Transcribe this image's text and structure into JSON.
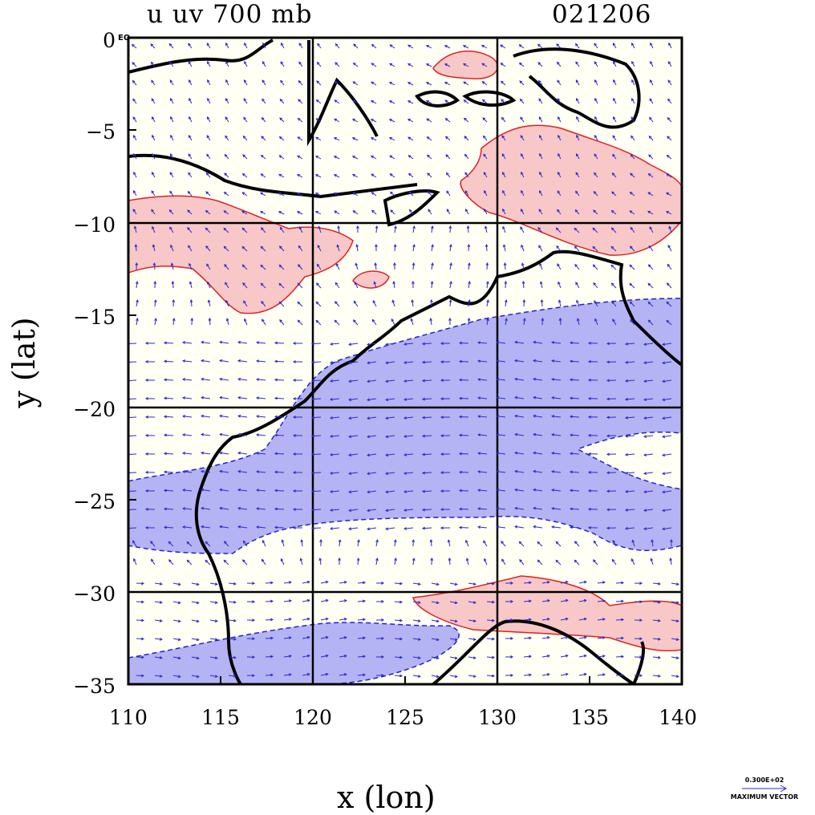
{
  "title_left": "u uv 700 mb",
  "title_right": "021206",
  "x_axis": {
    "title": "x (lon)",
    "range": [
      110,
      140
    ],
    "ticks": [
      "110",
      "115",
      "120",
      "125",
      "130",
      "135",
      "140"
    ]
  },
  "y_axis": {
    "title": "y (lat)",
    "range": [
      -35,
      0
    ],
    "ticks": [
      "0",
      "−5",
      "−10",
      "−15",
      "−20",
      "−25",
      "−30",
      "−35"
    ]
  },
  "eq_label": "EQ",
  "gridlines": {
    "lon": [
      120,
      130
    ],
    "lat": [
      -10,
      -20,
      -30
    ]
  },
  "vector_key": {
    "magnitude": "0.300E+02",
    "label": "MAXIMUM VECTOR"
  },
  "colors": {
    "negative_fill": "#b4b4f4",
    "negative_line": "#2222cc",
    "positive_fill": "#f8c8c8",
    "positive_line": "#dd2222",
    "coast": "#000000",
    "vectors": "#2a2ad0",
    "background": "#fffff4"
  }
}
